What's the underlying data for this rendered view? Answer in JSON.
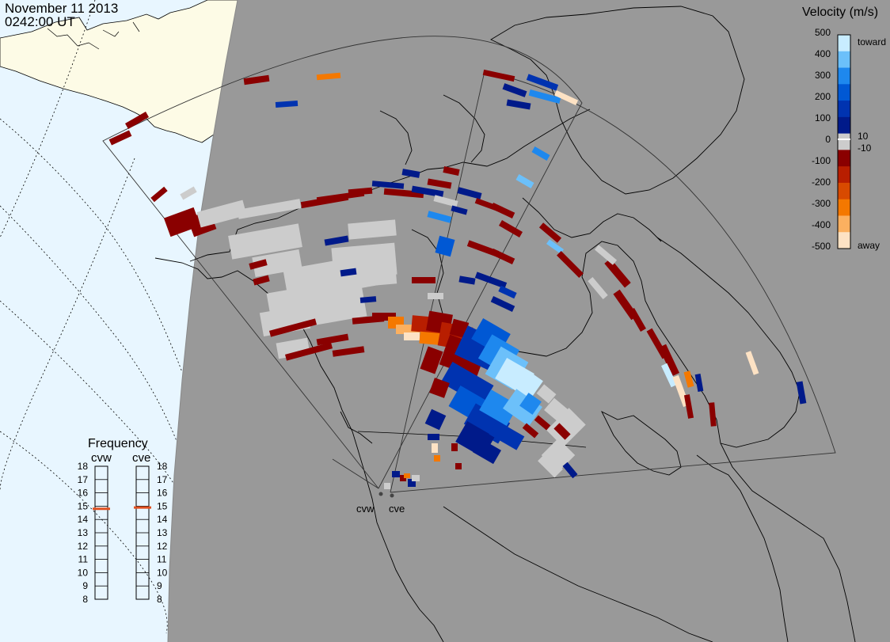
{
  "header": {
    "date": "November 11 2013",
    "time": "0242:00 UT"
  },
  "colorbar": {
    "title": "Velocity (m/s)",
    "ticks": [
      "500",
      "400",
      "300",
      "200",
      "100",
      "10",
      "0",
      "-10",
      "-100",
      "-200",
      "-300",
      "-400",
      "-500"
    ],
    "toward_label": "toward",
    "away_label": "away",
    "colors": [
      "#fde2c4",
      "#fbb060",
      "#f47800",
      "#d84a00",
      "#b81e00",
      "#8a0000",
      "#cccccc",
      "#001a8a",
      "#0033b0",
      "#0058d4",
      "#1e88ee",
      "#6cc0fa",
      "#c8ecff"
    ]
  },
  "frequency": {
    "title": "Frequency",
    "radars": [
      {
        "name": "cvw",
        "value": 14.8
      },
      {
        "name": "cve",
        "value": 14.9
      }
    ],
    "scale": [
      "18",
      "17",
      "16",
      "15",
      "14",
      "13",
      "12",
      "11",
      "10",
      "9",
      "8"
    ],
    "indicator_color": "#e05020"
  },
  "stations": [
    "cvw",
    "cve"
  ],
  "map_colors": {
    "night": "#999999",
    "ocean": "#e8f6ff",
    "land": "#fdfbe6",
    "scatter": "#cccccc"
  }
}
